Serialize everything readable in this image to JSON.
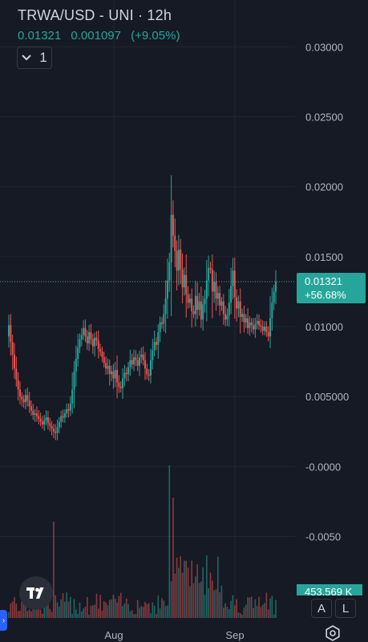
{
  "header": {
    "title": "TRWA/USD - UNI · 12h",
    "last_price": "0.01321",
    "change_abs": "0.001097",
    "change_pct": "(+9.05%)"
  },
  "indicator_toggle": {
    "label": "1",
    "icon": "chevron-down-icon"
  },
  "price_label": {
    "price": "0.01321",
    "change": "+56.68%"
  },
  "volume_label": "453.569 K",
  "scale_buttons": {
    "auto": "A",
    "log": "L"
  },
  "colors": {
    "up": "#26a69a",
    "down": "#ef5350",
    "background": "#161a25",
    "grid": "#232632"
  },
  "chart_data": {
    "type": "candlestick",
    "title": "TRWA/USD - UNI · 12h",
    "y_axis": {
      "range": [
        -0.0075,
        0.0325
      ],
      "ticks": [
        "0.03000",
        "0.02500",
        "0.02000",
        "0.01500",
        "0.01000",
        "0.005000",
        "-0.0000",
        "-0.0050"
      ]
    },
    "x_axis": {
      "ticks": [
        "Aug",
        "Sep"
      ]
    },
    "grid": true,
    "current_price": 0.01321,
    "closes": [
      0.0101,
      0.0089,
      0.008,
      0.007,
      0.0062,
      0.0055,
      0.005,
      0.0048,
      0.0046,
      0.0051,
      0.0047,
      0.0043,
      0.004,
      0.0037,
      0.0038,
      0.0036,
      0.0034,
      0.0032,
      0.003,
      0.0033,
      0.0035,
      0.0031,
      0.0029,
      0.0027,
      0.0025,
      0.0024,
      0.0028,
      0.0032,
      0.0036,
      0.0035,
      0.0038,
      0.0041,
      0.004,
      0.0045,
      0.0055,
      0.0068,
      0.0077,
      0.0085,
      0.0091,
      0.0094,
      0.0099,
      0.0093,
      0.0088,
      0.0096,
      0.0091,
      0.0086,
      0.0092,
      0.009,
      0.0084,
      0.0082,
      0.0078,
      0.0074,
      0.007,
      0.0072,
      0.0066,
      0.0068,
      0.0063,
      0.0069,
      0.006,
      0.0057,
      0.0056,
      0.0063,
      0.0067,
      0.0066,
      0.0071,
      0.0076,
      0.0073,
      0.0078,
      0.0076,
      0.0072,
      0.0078,
      0.008,
      0.0076,
      0.007,
      0.0066,
      0.0065,
      0.0076,
      0.0083,
      0.0089,
      0.0087,
      0.0096,
      0.0103,
      0.0102,
      0.0109,
      0.012,
      0.0133,
      0.0146,
      0.018,
      0.0165,
      0.0154,
      0.014,
      0.0155,
      0.0141,
      0.0128,
      0.0137,
      0.0123,
      0.0117,
      0.012,
      0.0111,
      0.0109,
      0.0122,
      0.0112,
      0.0118,
      0.0105,
      0.0116,
      0.012,
      0.0133,
      0.0142,
      0.0141,
      0.0125,
      0.0132,
      0.012,
      0.0124,
      0.0115,
      0.0118,
      0.0109,
      0.0105,
      0.0108,
      0.0117,
      0.0129,
      0.014,
      0.0121,
      0.0113,
      0.0118,
      0.0107,
      0.0109,
      0.0103,
      0.0106,
      0.0099,
      0.0103,
      0.0101,
      0.0098,
      0.0102,
      0.0104,
      0.0101,
      0.01,
      0.0097,
      0.01,
      0.0096,
      0.0093,
      0.0106,
      0.0117,
      0.0125,
      0.0132
    ]
  }
}
